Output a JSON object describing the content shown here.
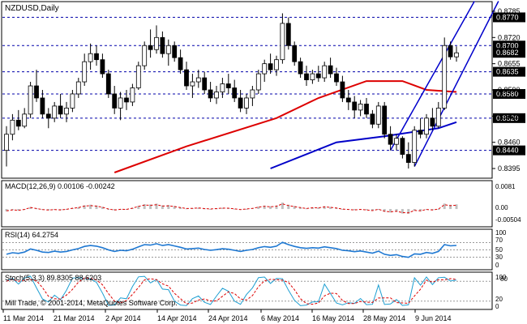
{
  "header": {
    "symbol_label": "NZDUSD,Daily"
  },
  "colors": {
    "up_candle": "#ffffff",
    "down_candle": "#000000",
    "ma_fast": "#dd0000",
    "ma_slow": "#0000c8",
    "channel": "#0000cc",
    "level_line": "#0000aa",
    "macd_bar": "#c0c0c0",
    "macd_signal": "#dd0000",
    "rsi_line": "#1e78d2",
    "stoch_main": "#1e9fd2",
    "stoch_signal": "#dd0000",
    "price_tag_bg": "#000000",
    "panel_border": "#000000"
  },
  "main_panel": {
    "price_axis_labels": [
      "0.8785",
      "0.8720",
      "0.8655",
      "0.8590",
      "0.8525",
      "0.8460",
      "0.8395"
    ],
    "level_tags": [
      "0.8770",
      "0.8700",
      "0.8635",
      "0.8580",
      "0.8520",
      "0.8440"
    ],
    "current_price": "0.8682"
  },
  "macd_panel": {
    "title": "MACD(12,26,9) 0.00106 -0.00242",
    "axis_labels": [
      "0.0081",
      "0.00",
      "-0.00504"
    ]
  },
  "rsi_panel": {
    "title": "RSI(14) 64.2754",
    "axis_labels": [
      "100",
      "70",
      "50",
      "30",
      "0"
    ]
  },
  "stoch_panel": {
    "title": "Stoch(5,3,3) 89.8305 88.6203",
    "axis_labels": [
      "100",
      "80",
      "20",
      "0"
    ],
    "copyright": "Mill Trade, © 2001-2014, MetaQuotes Software Corp."
  },
  "time_axis": {
    "labels": [
      "11 Mar 2014",
      "21 Mar 2014",
      "2 Apr 2014",
      "14 Apr 2014",
      "24 Apr 2014",
      "6 May 2014",
      "16 May 2014",
      "28 May 2014",
      "9 Jun 2014"
    ]
  },
  "chart_data": {
    "type": "candlestick",
    "instrument": "NZDUSD",
    "timeframe": "Daily",
    "y_range": [
      0.8375,
      0.8805
    ],
    "candles": [
      {
        "o": 0.844,
        "h": 0.85,
        "l": 0.84,
        "c": 0.848
      },
      {
        "o": 0.848,
        "h": 0.853,
        "l": 0.8465,
        "c": 0.8515
      },
      {
        "o": 0.8515,
        "h": 0.854,
        "l": 0.849,
        "c": 0.85
      },
      {
        "o": 0.85,
        "h": 0.8545,
        "l": 0.8495,
        "c": 0.853
      },
      {
        "o": 0.853,
        "h": 0.861,
        "l": 0.852,
        "c": 0.86
      },
      {
        "o": 0.86,
        "h": 0.864,
        "l": 0.856,
        "c": 0.857
      },
      {
        "o": 0.857,
        "h": 0.859,
        "l": 0.852,
        "c": 0.853
      },
      {
        "o": 0.853,
        "h": 0.8545,
        "l": 0.8495,
        "c": 0.852
      },
      {
        "o": 0.852,
        "h": 0.856,
        "l": 0.851,
        "c": 0.855
      },
      {
        "o": 0.855,
        "h": 0.858,
        "l": 0.852,
        "c": 0.853
      },
      {
        "o": 0.853,
        "h": 0.856,
        "l": 0.851,
        "c": 0.8545
      },
      {
        "o": 0.8545,
        "h": 0.859,
        "l": 0.8535,
        "c": 0.858
      },
      {
        "o": 0.858,
        "h": 0.862,
        "l": 0.857,
        "c": 0.861
      },
      {
        "o": 0.861,
        "h": 0.868,
        "l": 0.86,
        "c": 0.866
      },
      {
        "o": 0.866,
        "h": 0.8705,
        "l": 0.864,
        "c": 0.868
      },
      {
        "o": 0.868,
        "h": 0.87,
        "l": 0.865,
        "c": 0.8665
      },
      {
        "o": 0.8665,
        "h": 0.868,
        "l": 0.862,
        "c": 0.863
      },
      {
        "o": 0.863,
        "h": 0.864,
        "l": 0.857,
        "c": 0.858
      },
      {
        "o": 0.858,
        "h": 0.86,
        "l": 0.853,
        "c": 0.8545
      },
      {
        "o": 0.8545,
        "h": 0.8585,
        "l": 0.8515,
        "c": 0.857
      },
      {
        "o": 0.857,
        "h": 0.859,
        "l": 0.854,
        "c": 0.856
      },
      {
        "o": 0.856,
        "h": 0.8605,
        "l": 0.855,
        "c": 0.8595
      },
      {
        "o": 0.8595,
        "h": 0.866,
        "l": 0.859,
        "c": 0.865
      },
      {
        "o": 0.865,
        "h": 0.871,
        "l": 0.864,
        "c": 0.87
      },
      {
        "o": 0.87,
        "h": 0.874,
        "l": 0.867,
        "c": 0.869
      },
      {
        "o": 0.869,
        "h": 0.875,
        "l": 0.868,
        "c": 0.872
      },
      {
        "o": 0.872,
        "h": 0.8735,
        "l": 0.867,
        "c": 0.868
      },
      {
        "o": 0.868,
        "h": 0.8715,
        "l": 0.865,
        "c": 0.87
      },
      {
        "o": 0.87,
        "h": 0.871,
        "l": 0.866,
        "c": 0.867
      },
      {
        "o": 0.867,
        "h": 0.869,
        "l": 0.863,
        "c": 0.864
      },
      {
        "o": 0.864,
        "h": 0.866,
        "l": 0.859,
        "c": 0.86
      },
      {
        "o": 0.86,
        "h": 0.863,
        "l": 0.857,
        "c": 0.861
      },
      {
        "o": 0.861,
        "h": 0.864,
        "l": 0.8595,
        "c": 0.862
      },
      {
        "o": 0.862,
        "h": 0.8635,
        "l": 0.858,
        "c": 0.859
      },
      {
        "o": 0.859,
        "h": 0.861,
        "l": 0.856,
        "c": 0.857
      },
      {
        "o": 0.857,
        "h": 0.86,
        "l": 0.8555,
        "c": 0.8585
      },
      {
        "o": 0.8585,
        "h": 0.862,
        "l": 0.857,
        "c": 0.8605
      },
      {
        "o": 0.8605,
        "h": 0.863,
        "l": 0.858,
        "c": 0.8595
      },
      {
        "o": 0.8595,
        "h": 0.8615,
        "l": 0.856,
        "c": 0.857
      },
      {
        "o": 0.857,
        "h": 0.859,
        "l": 0.8535,
        "c": 0.8545
      },
      {
        "o": 0.8545,
        "h": 0.858,
        "l": 0.853,
        "c": 0.857
      },
      {
        "o": 0.857,
        "h": 0.86,
        "l": 0.855,
        "c": 0.859
      },
      {
        "o": 0.859,
        "h": 0.864,
        "l": 0.858,
        "c": 0.863
      },
      {
        "o": 0.863,
        "h": 0.8665,
        "l": 0.861,
        "c": 0.8655
      },
      {
        "o": 0.8655,
        "h": 0.868,
        "l": 0.863,
        "c": 0.864
      },
      {
        "o": 0.864,
        "h": 0.8675,
        "l": 0.8625,
        "c": 0.8665
      },
      {
        "o": 0.8665,
        "h": 0.878,
        "l": 0.8655,
        "c": 0.8755
      },
      {
        "o": 0.8755,
        "h": 0.877,
        "l": 0.869,
        "c": 0.87
      },
      {
        "o": 0.87,
        "h": 0.871,
        "l": 0.865,
        "c": 0.866
      },
      {
        "o": 0.866,
        "h": 0.867,
        "l": 0.862,
        "c": 0.863
      },
      {
        "o": 0.863,
        "h": 0.865,
        "l": 0.86,
        "c": 0.8615
      },
      {
        "o": 0.8615,
        "h": 0.864,
        "l": 0.8605,
        "c": 0.863
      },
      {
        "o": 0.863,
        "h": 0.865,
        "l": 0.861,
        "c": 0.862
      },
      {
        "o": 0.862,
        "h": 0.866,
        "l": 0.861,
        "c": 0.865
      },
      {
        "o": 0.865,
        "h": 0.867,
        "l": 0.862,
        "c": 0.863
      },
      {
        "o": 0.863,
        "h": 0.8645,
        "l": 0.86,
        "c": 0.861
      },
      {
        "o": 0.861,
        "h": 0.8625,
        "l": 0.856,
        "c": 0.857
      },
      {
        "o": 0.857,
        "h": 0.859,
        "l": 0.854,
        "c": 0.856
      },
      {
        "o": 0.856,
        "h": 0.8575,
        "l": 0.852,
        "c": 0.854
      },
      {
        "o": 0.854,
        "h": 0.8565,
        "l": 0.8525,
        "c": 0.8555
      },
      {
        "o": 0.8555,
        "h": 0.857,
        "l": 0.852,
        "c": 0.853
      },
      {
        "o": 0.853,
        "h": 0.854,
        "l": 0.8495,
        "c": 0.8505
      },
      {
        "o": 0.8505,
        "h": 0.856,
        "l": 0.8495,
        "c": 0.855
      },
      {
        "o": 0.855,
        "h": 0.856,
        "l": 0.847,
        "c": 0.848
      },
      {
        "o": 0.848,
        "h": 0.85,
        "l": 0.844,
        "c": 0.8455
      },
      {
        "o": 0.8455,
        "h": 0.848,
        "l": 0.844,
        "c": 0.847
      },
      {
        "o": 0.847,
        "h": 0.8475,
        "l": 0.842,
        "c": 0.843
      },
      {
        "o": 0.843,
        "h": 0.846,
        "l": 0.8395,
        "c": 0.841
      },
      {
        "o": 0.841,
        "h": 0.85,
        "l": 0.84,
        "c": 0.849
      },
      {
        "o": 0.849,
        "h": 0.852,
        "l": 0.847,
        "c": 0.848
      },
      {
        "o": 0.848,
        "h": 0.853,
        "l": 0.847,
        "c": 0.852
      },
      {
        "o": 0.852,
        "h": 0.8545,
        "l": 0.849,
        "c": 0.85
      },
      {
        "o": 0.85,
        "h": 0.856,
        "l": 0.8495,
        "c": 0.8545
      },
      {
        "o": 0.8545,
        "h": 0.872,
        "l": 0.854,
        "c": 0.87
      },
      {
        "o": 0.87,
        "h": 0.871,
        "l": 0.8665,
        "c": 0.8672
      },
      {
        "o": 0.8672,
        "h": 0.8698,
        "l": 0.866,
        "c": 0.8682
      }
    ],
    "levels": [
      0.877,
      0.87,
      0.8635,
      0.858,
      0.852,
      0.844
    ],
    "moving_average_fast": {
      "color": "#dd0000",
      "points": [
        [
          18,
          0.8385
        ],
        [
          30,
          0.845
        ],
        [
          45,
          0.852
        ],
        [
          52,
          0.857
        ],
        [
          60,
          0.8612
        ],
        [
          66,
          0.8612
        ],
        [
          70,
          0.859
        ],
        [
          75,
          0.8585
        ]
      ]
    },
    "moving_average_slow": {
      "color": "#0000c8",
      "points": [
        [
          44,
          0.8395
        ],
        [
          55,
          0.846
        ],
        [
          63,
          0.8475
        ],
        [
          72,
          0.8495
        ],
        [
          75,
          0.851
        ]
      ]
    },
    "channel_lines": [
      {
        "from": [
          64,
          0.844
        ],
        "to": [
          78,
          0.881
        ]
      },
      {
        "from": [
          68,
          0.84
        ],
        "to": [
          82,
          0.881
        ]
      }
    ],
    "macd": {
      "value": 0.00106,
      "signal": -0.00242,
      "range": [
        -0.00504,
        0.0081
      ]
    },
    "rsi": {
      "value": 64.2754,
      "levels": [
        70,
        50,
        30
      ],
      "range": [
        0,
        100
      ]
    },
    "stochastic": {
      "main": 89.8305,
      "signal": 88.6203,
      "levels": [
        80,
        20
      ],
      "range": [
        0,
        100
      ]
    }
  }
}
